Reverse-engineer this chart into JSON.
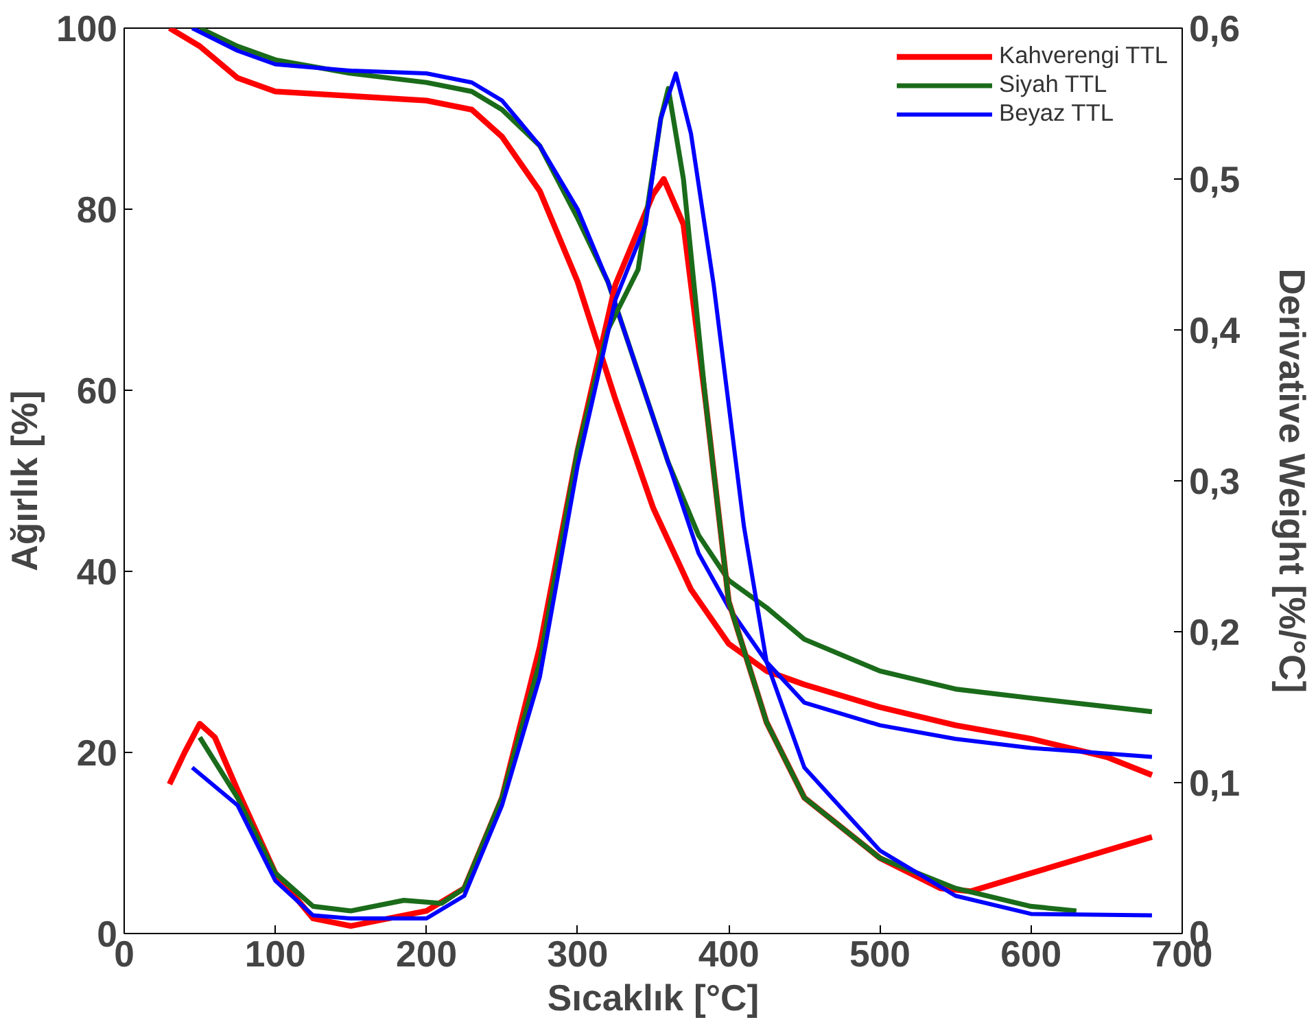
{
  "chart_data": {
    "type": "line",
    "xlabel": "Sıcaklık [°C]",
    "ylabel": "Ağırlık [%]",
    "y2label": "Derivative Weight [%/°C]",
    "xlim": [
      0,
      700
    ],
    "xticks": [
      0,
      100,
      200,
      300,
      400,
      500,
      600,
      700
    ],
    "ylim": [
      0,
      100
    ],
    "yticks": [
      0,
      20,
      40,
      60,
      80,
      100
    ],
    "y2lim": [
      0,
      0.6
    ],
    "y2ticks": [
      {
        "value": 0,
        "label": "0"
      },
      {
        "value": 0.1,
        "label": "0,1"
      },
      {
        "value": 0.2,
        "label": "0,2"
      },
      {
        "value": 0.3,
        "label": "0,3"
      },
      {
        "value": 0.4,
        "label": "0,4"
      },
      {
        "value": 0.5,
        "label": "0,5"
      },
      {
        "value": 0.6,
        "label": "0,6"
      }
    ],
    "grid": false,
    "legend": "top right",
    "line_style": "solid",
    "marker": "none",
    "series": [
      {
        "name": "Kahverengi TTL",
        "color": "#ff0000",
        "x": [
          30,
          50,
          75,
          100,
          150,
          200,
          230,
          250,
          275,
          300,
          325,
          350,
          375,
          400,
          425,
          450,
          500,
          550,
          600,
          650,
          680
        ],
        "values": [
          100,
          98,
          94.5,
          93,
          92.5,
          92,
          91,
          88,
          82,
          72,
          59,
          47,
          38,
          32,
          29,
          27.5,
          25,
          23,
          21.5,
          19.5,
          17.5
        ]
      },
      {
        "name": "Siyah TTL",
        "color": "#1a6b1a",
        "x": [
          50,
          75,
          100,
          150,
          200,
          230,
          250,
          275,
          300,
          320,
          340,
          360,
          380,
          400,
          425,
          450,
          500,
          550,
          600,
          680
        ],
        "values": [
          100,
          98,
          96.5,
          95,
          94,
          93,
          91,
          87,
          79,
          72,
          62,
          52,
          44,
          39,
          36,
          32.5,
          29,
          27,
          26,
          24.5
        ]
      },
      {
        "name": "Beyaz TTL",
        "color": "#0000ff",
        "x": [
          45,
          75,
          100,
          150,
          200,
          230,
          250,
          275,
          300,
          320,
          340,
          360,
          380,
          400,
          425,
          450,
          500,
          550,
          600,
          680
        ],
        "values": [
          100,
          97.5,
          96,
          95.3,
          95,
          94,
          92,
          87,
          80,
          72,
          62,
          52,
          42,
          36,
          30,
          25.5,
          23,
          21.5,
          20.5,
          19.5
        ]
      },
      {
        "axis": "y2",
        "color": "#ff0000",
        "x": [
          30,
          40,
          50,
          60,
          75,
          100,
          125,
          150,
          200,
          225,
          250,
          275,
          300,
          325,
          350,
          357,
          370,
          385,
          400,
          425,
          450,
          500,
          540,
          560,
          600,
          650,
          680
        ],
        "values": [
          0.099,
          0.12,
          0.139,
          0.13,
          0.095,
          0.04,
          0.01,
          0.005,
          0.015,
          0.03,
          0.09,
          0.19,
          0.32,
          0.43,
          0.49,
          0.5,
          0.47,
          0.35,
          0.22,
          0.14,
          0.09,
          0.05,
          0.03,
          0.028,
          0.04,
          0.055,
          0.064
        ]
      },
      {
        "axis": "y2",
        "color": "#1a6b1a",
        "x": [
          50,
          75,
          100,
          125,
          150,
          185,
          210,
          225,
          250,
          275,
          300,
          320,
          340,
          355,
          360,
          370,
          385,
          400,
          425,
          450,
          500,
          550,
          600,
          630
        ],
        "values": [
          0.13,
          0.09,
          0.04,
          0.018,
          0.015,
          0.022,
          0.02,
          0.03,
          0.09,
          0.18,
          0.32,
          0.4,
          0.44,
          0.54,
          0.56,
          0.5,
          0.35,
          0.22,
          0.14,
          0.09,
          0.05,
          0.03,
          0.018,
          0.015
        ]
      },
      {
        "axis": "y2",
        "color": "#0000ff",
        "x": [
          45,
          75,
          100,
          125,
          150,
          200,
          225,
          250,
          275,
          300,
          325,
          345,
          355,
          365,
          375,
          390,
          410,
          425,
          450,
          500,
          550,
          600,
          680
        ],
        "values": [
          0.11,
          0.085,
          0.035,
          0.012,
          0.01,
          0.01,
          0.025,
          0.085,
          0.17,
          0.31,
          0.42,
          0.47,
          0.54,
          0.57,
          0.53,
          0.43,
          0.27,
          0.18,
          0.11,
          0.055,
          0.025,
          0.013,
          0.012
        ]
      }
    ]
  }
}
